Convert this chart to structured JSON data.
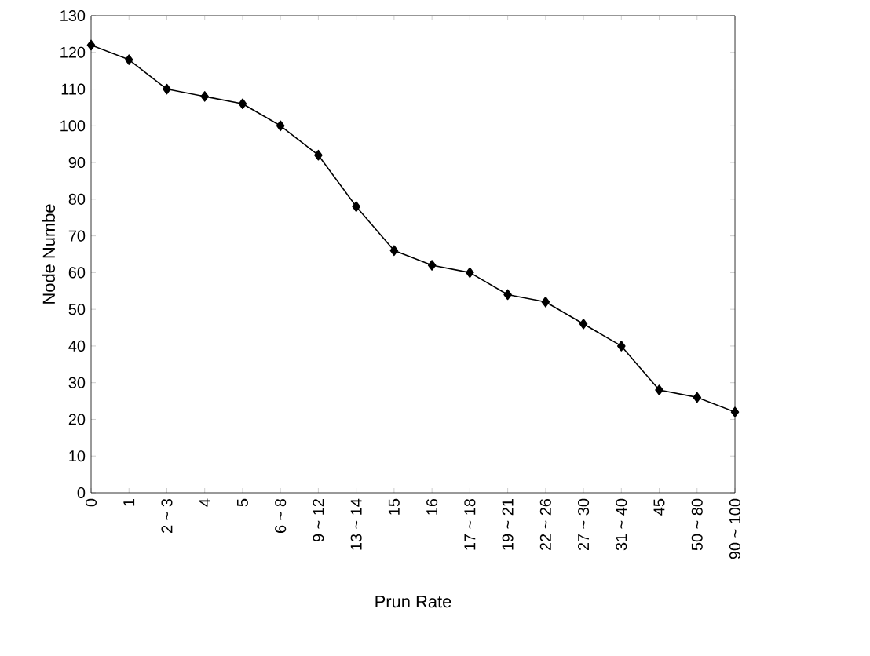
{
  "chart_data": {
    "type": "line",
    "xlabel": "Prun Rate",
    "ylabel": "Node Numbe",
    "categories": [
      "0",
      "1",
      "2 ~ 3",
      "4",
      "5",
      "6 ~ 8",
      "9 ~ 12",
      "13 ~ 14",
      "15",
      "16",
      "17 ~ 18",
      "19 ~ 21",
      "22 ~ 26",
      "27 ~ 30",
      "31 ~ 40",
      "45",
      "50 ~ 80",
      "90 ~ 100"
    ],
    "values": [
      122,
      118,
      110,
      108,
      106,
      100,
      92,
      78,
      66,
      62,
      60,
      54,
      52,
      46,
      40,
      28,
      26,
      22
    ],
    "color": "#000000",
    "marker": "diamond",
    "line_style": "solid",
    "ylim": [
      0,
      130
    ],
    "yticks": [
      0,
      10,
      20,
      30,
      40,
      50,
      60,
      70,
      80,
      90,
      100,
      110,
      120,
      130
    ]
  }
}
